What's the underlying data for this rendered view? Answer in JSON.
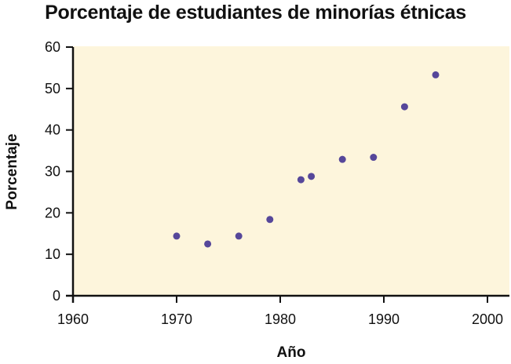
{
  "chart_data": {
    "type": "scatter",
    "title": "Porcentaje de estudiantes de minorías étnicas",
    "xlabel": "Año",
    "ylabel": "Porcentaje",
    "xlim": [
      1960,
      2002
    ],
    "ylim": [
      0,
      60
    ],
    "x_ticks": [
      1960,
      1970,
      1980,
      1990,
      2000
    ],
    "y_ticks": [
      0,
      10,
      20,
      30,
      40,
      50,
      60
    ],
    "grid": false,
    "legend": null,
    "background_color": "#fdf5dc",
    "point_color": "#56479a",
    "series": [
      {
        "name": "Porcentaje",
        "x": [
          1970,
          1973,
          1976,
          1979,
          1982,
          1983,
          1986,
          1989,
          1992,
          1995
        ],
        "y": [
          14.4,
          12.5,
          14.4,
          18.4,
          28.0,
          28.8,
          32.9,
          33.4,
          45.6,
          53.3
        ]
      }
    ]
  }
}
